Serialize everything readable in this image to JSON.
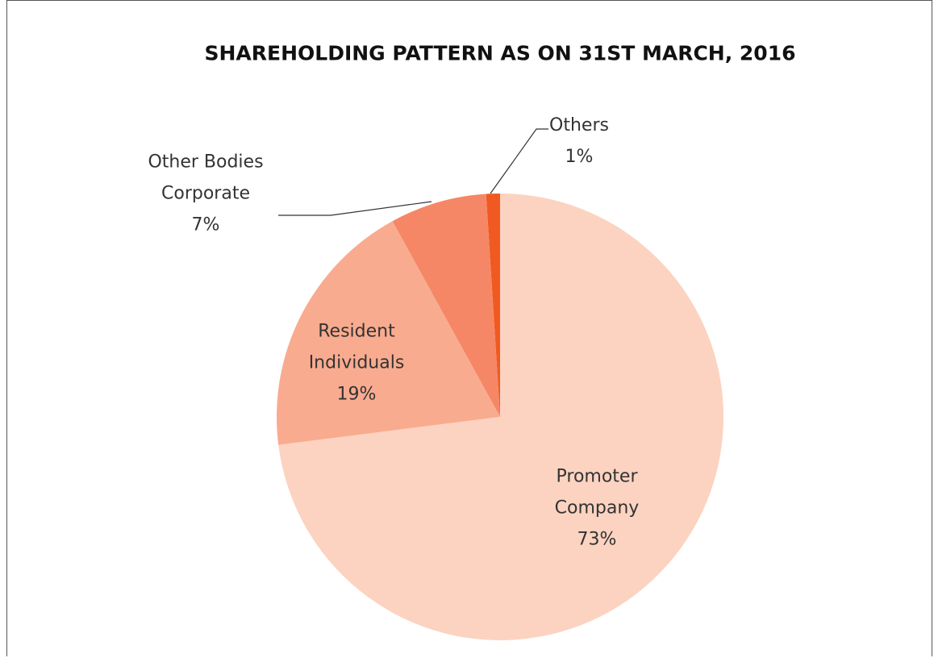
{
  "chart_data": {
    "type": "pie",
    "title": "SHAREHOLDING PATTERN AS ON 31ST MARCH, 2016",
    "categories": [
      "Promoter Company",
      "Resident Individuals",
      "Other Bodies Corporate",
      "Others"
    ],
    "values": [
      73,
      19,
      7,
      1
    ],
    "value_labels": [
      "73%",
      "19%",
      "7%",
      "1%"
    ],
    "colors": [
      "#fbd3c0",
      "#f9ab8f",
      "#f58766",
      "#f05a22"
    ]
  }
}
